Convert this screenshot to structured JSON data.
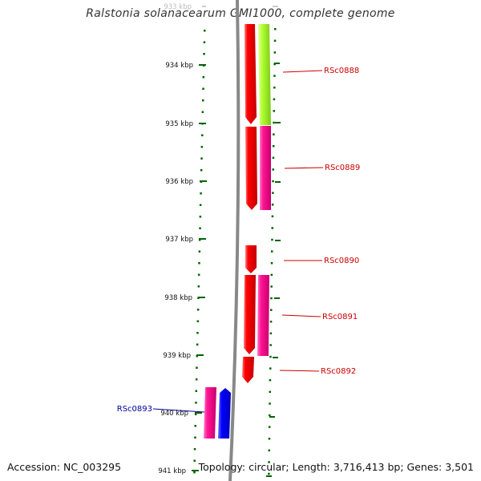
{
  "title": "Ralstonia solanacearum GMI1000, complete genome",
  "footer": {
    "accession": "Accession: NC_003295",
    "summary": "Topology: circular; Length: 3,716,413 bp; Genes: 3,501"
  },
  "colors": {
    "forward_cds": "#ff0000",
    "reverse_cds": "#ff1493",
    "reverse_cds_alt": "#adff2f",
    "forward_cds_alt": "#0000ff",
    "tick": "#006400",
    "forward_label": "#cc0000",
    "reverse_label": "#000099",
    "backbone": "#888888"
  },
  "ruler": {
    "ticks": [
      {
        "label": "933 kbp"
      },
      {
        "label": "934 kbp"
      },
      {
        "label": "935 kbp"
      },
      {
        "label": "936 kbp"
      },
      {
        "label": "937 kbp"
      },
      {
        "label": "938 kbp"
      },
      {
        "label": "939 kbp"
      },
      {
        "label": "940 kbp"
      },
      {
        "label": "941 kbp"
      }
    ]
  },
  "gene_labels": [
    {
      "name": "RSc0888"
    },
    {
      "name": "RSc0889"
    },
    {
      "name": "RSc0890"
    },
    {
      "name": "RSc0891"
    },
    {
      "name": "RSc0892"
    },
    {
      "name": "RSc0893"
    }
  ]
}
